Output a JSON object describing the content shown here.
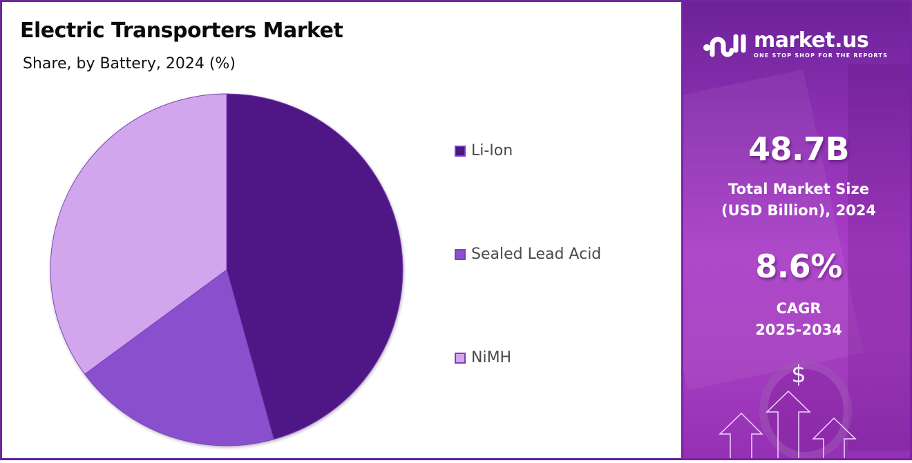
{
  "header": {
    "title": "Electric Transporters Market",
    "subtitle": "Share, by Battery, 2024 (%)"
  },
  "legend": [
    {
      "label": "Li-Ion",
      "color": "#4f1785"
    },
    {
      "label": "Sealed Lead Acid",
      "color": "#8a4fcc"
    },
    {
      "label": "NiMH",
      "color": "#d2a6ec"
    }
  ],
  "sidebar": {
    "brand": "market.us",
    "tagline": "ONE STOP SHOP FOR THE REPORTS",
    "market_size_value": "48.7B",
    "market_size_label_line1": "Total Market Size",
    "market_size_label_line2": "(USD Billion), 2024",
    "cagr_value": "8.6%",
    "cagr_label_line1": "CAGR",
    "cagr_label_line2": "2025-2034",
    "dollar_symbol": "$"
  },
  "colors": {
    "border": "#6a2a9a",
    "panel_top": "#6c2299",
    "panel_mid": "#a93ec6"
  },
  "chart_data": {
    "type": "pie",
    "title": "Electric Transporters Market",
    "subtitle": "Share, by Battery, 2024 (%)",
    "categories": [
      "Li-Ion",
      "Sealed Lead Acid",
      "NiMH"
    ],
    "values": [
      45.7,
      19.2,
      35.1
    ],
    "colors": [
      "#4f1785",
      "#8a4fcc",
      "#d2a6ec"
    ],
    "start_angle_deg": 0,
    "direction": "clockwise",
    "legend_position": "right",
    "data_labels": false
  }
}
